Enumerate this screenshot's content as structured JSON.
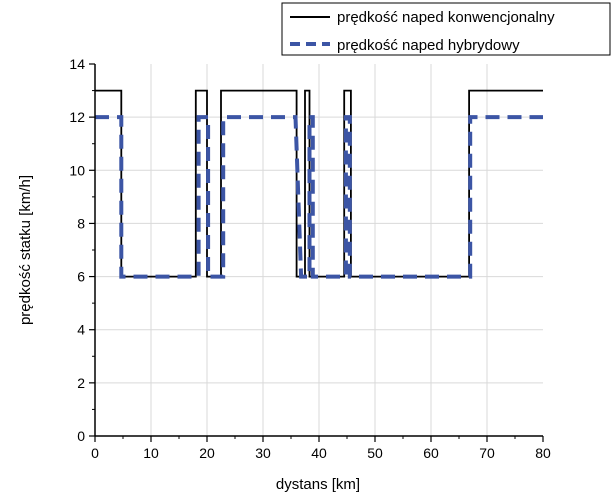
{
  "chart_data": {
    "type": "line",
    "title": "",
    "xlabel": "dystans [km]",
    "ylabel": "prędkość statku [km/h]",
    "xlim": [
      0,
      80
    ],
    "ylim": [
      0,
      14
    ],
    "x_ticks": [
      0,
      10,
      20,
      30,
      40,
      50,
      60,
      70,
      80
    ],
    "y_ticks": [
      0,
      2,
      4,
      6,
      8,
      10,
      12,
      14
    ],
    "grid": true,
    "legend_position": "top-right",
    "series": [
      {
        "name": "prędkość naped konwencjonalny",
        "color": "#000000",
        "style": "solid",
        "points": [
          [
            0,
            13
          ],
          [
            4.7,
            13
          ],
          [
            4.7,
            6
          ],
          [
            18,
            6
          ],
          [
            18,
            13
          ],
          [
            20,
            13
          ],
          [
            20,
            6
          ],
          [
            22.5,
            6
          ],
          [
            22.5,
            13
          ],
          [
            36,
            13
          ],
          [
            36,
            6
          ],
          [
            37.5,
            6
          ],
          [
            37.5,
            13
          ],
          [
            38.3,
            13
          ],
          [
            38.3,
            6
          ],
          [
            44.5,
            6
          ],
          [
            44.5,
            13
          ],
          [
            45.7,
            13
          ],
          [
            45.7,
            6
          ],
          [
            66.8,
            6
          ],
          [
            66.8,
            13
          ],
          [
            80,
            13
          ]
        ]
      },
      {
        "name": "prędkość naped hybrydowy",
        "color": "#3c55a5",
        "style": "dashed",
        "points": [
          [
            0,
            12
          ],
          [
            4.7,
            12
          ],
          [
            4.7,
            6
          ],
          [
            18.5,
            6
          ],
          [
            18.5,
            12
          ],
          [
            20.2,
            12
          ],
          [
            20.2,
            6
          ],
          [
            22.9,
            6
          ],
          [
            22.9,
            12
          ],
          [
            35.8,
            12
          ],
          [
            36.8,
            6
          ],
          [
            38.3,
            6
          ],
          [
            38.3,
            12
          ],
          [
            38.9,
            12
          ],
          [
            38.9,
            6
          ],
          [
            44.8,
            6
          ],
          [
            44.8,
            12
          ],
          [
            45.5,
            12
          ],
          [
            45.5,
            6
          ],
          [
            67,
            6
          ],
          [
            67,
            12
          ],
          [
            80,
            12
          ]
        ]
      }
    ]
  }
}
